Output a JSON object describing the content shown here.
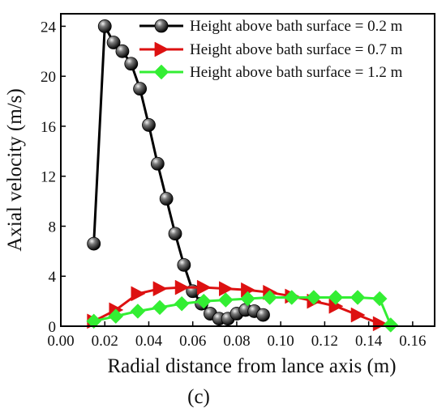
{
  "panel_label": "(c)",
  "chart_data": {
    "type": "line",
    "xlabel": "Radial distance from lance axis (m)",
    "ylabel": "Axial velocity (m/s)",
    "xlim": [
      0.0,
      0.17
    ],
    "ylim": [
      0,
      25
    ],
    "x_ticks": [
      0.0,
      0.02,
      0.04,
      0.06,
      0.08,
      0.1,
      0.12,
      0.14,
      0.16
    ],
    "x_tick_labels": [
      "0.00",
      "0.02",
      "0.04",
      "0.06",
      "0.08",
      "0.10",
      "0.12",
      "0.14",
      "0.16"
    ],
    "y_ticks": [
      0,
      4,
      8,
      12,
      16,
      20,
      24
    ],
    "y_tick_labels": [
      "0",
      "4",
      "8",
      "12",
      "16",
      "20",
      "24"
    ],
    "grid": false,
    "legend_position": "top-right",
    "series": [
      {
        "name": "Height above bath surface = 0.2 m",
        "color": "#000000",
        "marker": "sphere",
        "x": [
          0.015,
          0.02,
          0.024,
          0.028,
          0.032,
          0.036,
          0.04,
          0.044,
          0.048,
          0.052,
          0.056,
          0.06,
          0.064,
          0.068,
          0.072,
          0.076,
          0.08,
          0.084,
          0.088,
          0.092
        ],
        "y": [
          6.6,
          24.0,
          22.7,
          22.0,
          21.0,
          19.0,
          16.1,
          13.0,
          10.2,
          7.4,
          4.9,
          2.8,
          1.8,
          1.0,
          0.6,
          0.6,
          1.0,
          1.3,
          1.2,
          0.9
        ]
      },
      {
        "name": "Height above bath surface = 0.7 m",
        "color": "#dd1111",
        "marker": "triangle-right",
        "x": [
          0.015,
          0.025,
          0.035,
          0.045,
          0.055,
          0.065,
          0.075,
          0.085,
          0.095,
          0.105,
          0.115,
          0.125,
          0.135,
          0.145
        ],
        "y": [
          0.4,
          1.3,
          2.6,
          3.0,
          3.1,
          3.1,
          3.0,
          2.9,
          2.7,
          2.4,
          2.0,
          1.6,
          0.9,
          0.2
        ]
      },
      {
        "name": "Height above bath surface = 1.2 m",
        "color": "#33ee33",
        "marker": "diamond",
        "x": [
          0.015,
          0.025,
          0.035,
          0.045,
          0.055,
          0.065,
          0.075,
          0.085,
          0.095,
          0.105,
          0.115,
          0.125,
          0.135,
          0.145,
          0.15
        ],
        "y": [
          0.4,
          0.8,
          1.2,
          1.5,
          1.8,
          2.0,
          2.1,
          2.2,
          2.3,
          2.3,
          2.3,
          2.3,
          2.3,
          2.2,
          0.1
        ]
      }
    ]
  }
}
